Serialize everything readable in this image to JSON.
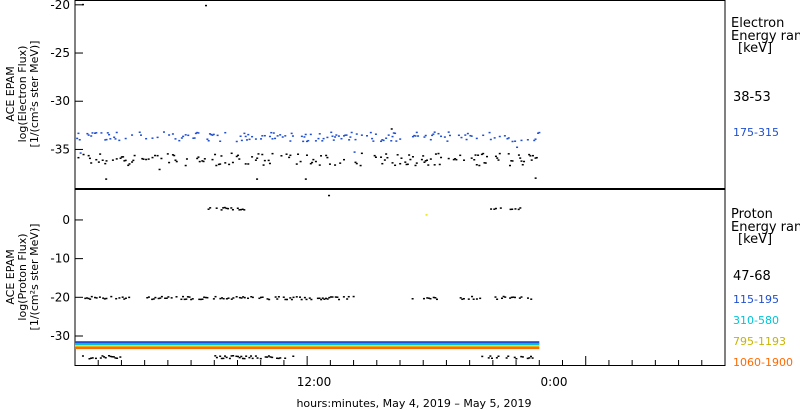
{
  "chart_data": [
    {
      "type": "scatter",
      "ylabel_lines": [
        "ACE EPAM",
        "log(Electron Flux)",
        "[1/(cm²s ster MeV)]"
      ],
      "ylim": [
        -39,
        -19.5
      ],
      "y_ticks": [
        -20,
        -25,
        -30,
        -35
      ],
      "legend_title": [
        "Electron",
        "Energy ran",
        "[keV]"
      ],
      "series": [
        {
          "name": "38-53",
          "color": "#000000",
          "band": [
            -36.6,
            -35.3
          ],
          "outliers": [
            [
              5.6,
              -20.0
            ],
            [
              0.3,
              -19.9
            ],
            [
              1.3,
              -38.0
            ],
            [
              3.6,
              -37.0
            ],
            [
              7.8,
              -38.0
            ],
            [
              9.9,
              -38.0
            ],
            [
              13.6,
              -32.8
            ],
            [
              19.8,
              -37.9
            ]
          ]
        },
        {
          "name": "175-315",
          "color": "#1f4fd0",
          "band": [
            -34.1,
            -33.1
          ],
          "outliers": [
            [
              0.2,
              -35.3
            ],
            [
              12.0,
              -35.2
            ],
            [
              19.0,
              -34.7
            ]
          ]
        }
      ]
    },
    {
      "type": "scatter",
      "ylabel_lines": [
        "ACE EPAM",
        "log(Proton Flux)",
        "[1/(cm²s ster MeV)]"
      ],
      "ylim": [
        -37.5,
        8
      ],
      "y_ticks": [
        0,
        -10,
        -20,
        -30
      ],
      "legend_title": [
        "Proton",
        "Energy ran",
        "[keV]"
      ],
      "series": [
        {
          "name": "47-68",
          "color": "#000000",
          "clusters": [
            [
              [
                0.4,
                2.3
              ],
              -20
            ],
            [
              [
                3.0,
                12.0
              ],
              -20
            ],
            [
              [
                14.5,
                15.6
              ],
              -20
            ],
            [
              [
                16.5,
                17.5
              ],
              -20
            ],
            [
              [
                18.0,
                19.8
              ],
              -20
            ],
            [
              [
                5.5,
                7.3
              ],
              3
            ],
            [
              [
                17.6,
                19.2
              ],
              3
            ],
            [
              [
                0.3,
                2.0
              ],
              -35.3
            ],
            [
              [
                6.0,
                9.5
              ],
              -35.3
            ],
            [
              [
                17.5,
                19.7
              ],
              -35.3
            ]
          ],
          "outliers": [
            [
              10.9,
              6.5
            ]
          ]
        },
        {
          "name": "115-195",
          "color": "#1f4fd0",
          "level": -31.6
        },
        {
          "name": "310-580",
          "color": "#00c4d8",
          "level": -32.1
        },
        {
          "name": "795-1193",
          "color": "#e8e800",
          "level": -32.6,
          "outliers": [
            [
              15.1,
              1.5
            ]
          ]
        },
        {
          "name": "1060-1900",
          "color": "#ff6a00",
          "level": -33.0
        }
      ]
    }
  ],
  "x_axis": {
    "xlim": [
      0,
      28
    ],
    "data_end": 20,
    "ticks": [
      {
        "x": 10,
        "label": "12:00"
      },
      {
        "x": 22,
        "label": "0:00"
      }
    ],
    "xlabel": "hours:minutes, May  4, 2019 – May  5, 2019"
  }
}
